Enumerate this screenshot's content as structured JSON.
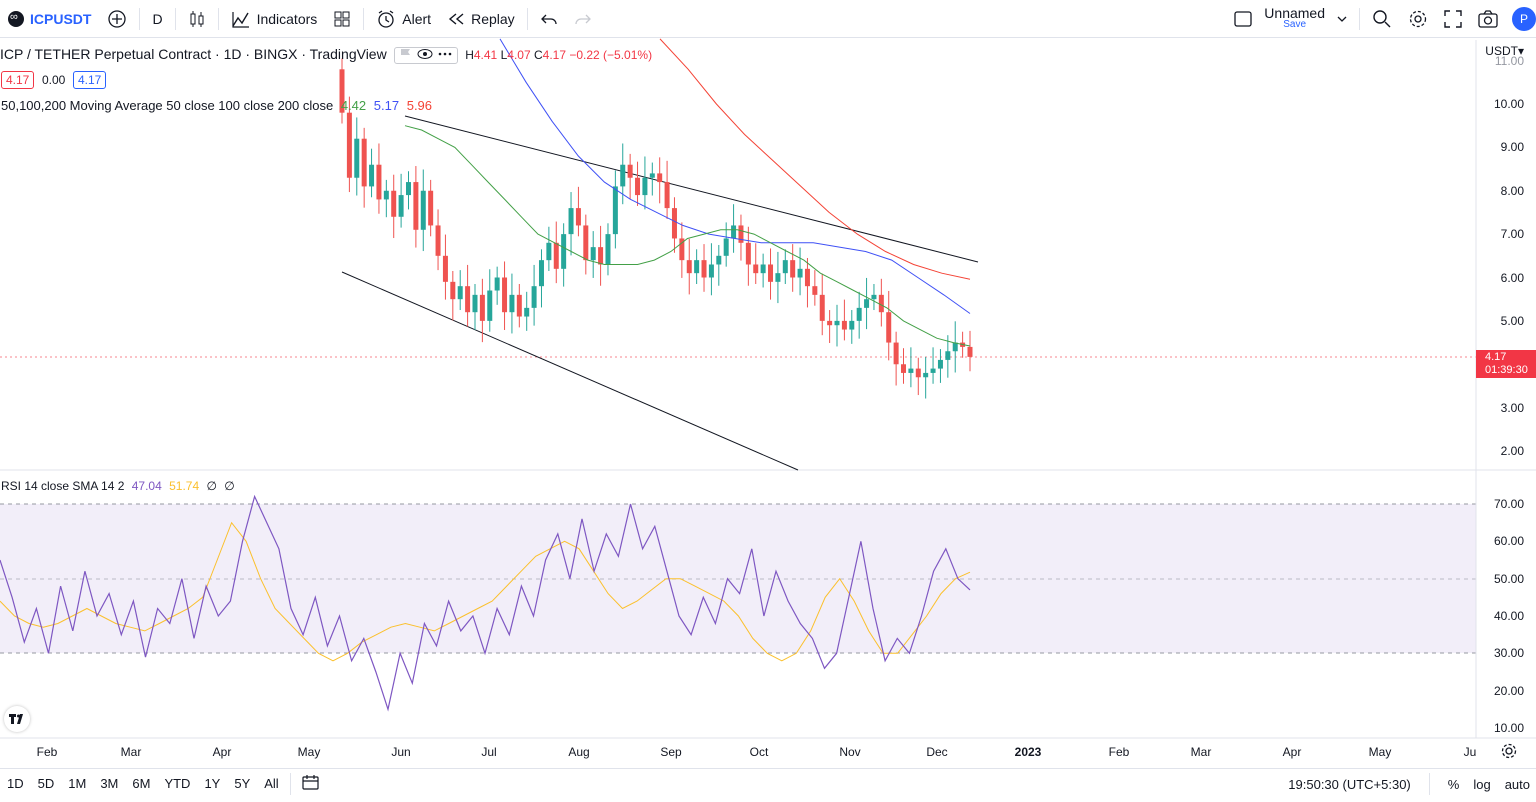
{
  "toolbar": {
    "symbol": "ICPUSDT",
    "interval": "D",
    "indicators": "Indicators",
    "alert": "Alert",
    "replay": "Replay",
    "layout_name": "Unnamed",
    "save": "Save",
    "avatar": "P"
  },
  "legend": {
    "title": "ICP / TETHER Perpetual Contract · 1D · BINGX · TradingView",
    "h_label": "H",
    "h": "4.41",
    "l_label": "L",
    "l": "4.07",
    "c_label": "C",
    "c": "4.17",
    "change": "−0.22 (−5.01%)",
    "bid": "4.17",
    "spread": "0.00",
    "ask": "4.17",
    "ma_label": "50,100,200 Moving Average 50 close 100 close 200 close",
    "ma50": "4.42",
    "ma100": "5.17",
    "ma200": "5.96",
    "rsi_label": "RSI 14 close SMA 14 2",
    "rsi": "47.04",
    "rsi_ma": "51.74",
    "na1": "∅",
    "na2": "∅"
  },
  "price_axis": {
    "currency": "USDT",
    "ticks": [
      "11.00",
      "10.00",
      "9.00",
      "8.00",
      "7.00",
      "6.00",
      "5.00",
      "4.00",
      "3.00",
      "2.00"
    ],
    "current": "4.17",
    "countdown": "01:39:30"
  },
  "rsi_axis": {
    "ticks": [
      "70.00",
      "60.00",
      "50.00",
      "40.00",
      "30.00",
      "20.00",
      "10.00"
    ]
  },
  "time_axis": [
    "Feb",
    "Mar",
    "Apr",
    "May",
    "Jun",
    "Jul",
    "Aug",
    "Sep",
    "Oct",
    "Nov",
    "Dec",
    "2023",
    "Feb",
    "Mar",
    "Apr",
    "May",
    "Ju"
  ],
  "bottom": {
    "ranges": [
      "1D",
      "5D",
      "1M",
      "3M",
      "6M",
      "YTD",
      "1Y",
      "5Y",
      "All"
    ],
    "clock": "19:50:30 (UTC+5:30)",
    "pct": "%",
    "log": "log",
    "auto": "auto"
  },
  "colors": {
    "up": "#26a69a",
    "down": "#ef5350",
    "ma50": "#43a047",
    "ma100": "#3f51f5",
    "ma200": "#f44336",
    "rsi": "#7e57c2",
    "rsi_ma": "#fbc02d",
    "accent": "#2962ff"
  },
  "chart_data": {
    "type": "candlestick",
    "price_range": [
      1.6,
      11.2
    ],
    "rsi_range": [
      8,
      75
    ],
    "rsi_levels": [
      70,
      50,
      30
    ],
    "closes": [
      9.8,
      8.3,
      9.2,
      8.1,
      8.6,
      7.8,
      8.0,
      7.4,
      7.9,
      8.2,
      7.1,
      8.0,
      7.2,
      6.5,
      5.9,
      5.5,
      5.8,
      5.2,
      5.6,
      5.0,
      5.7,
      6.0,
      5.2,
      5.6,
      5.1,
      5.3,
      5.8,
      6.4,
      6.8,
      6.2,
      7.0,
      7.6,
      7.2,
      6.4,
      6.7,
      6.3,
      7.0,
      8.1,
      8.6,
      8.3,
      7.9,
      8.3,
      8.4,
      8.2,
      7.6,
      6.9,
      6.4,
      6.1,
      6.4,
      6.0,
      6.3,
      6.5,
      6.9,
      7.2,
      6.8,
      6.3,
      6.1,
      6.3,
      5.9,
      6.1,
      6.4,
      6.0,
      6.2,
      5.8,
      5.6,
      5.0,
      4.9,
      5.0,
      4.8,
      5.0,
      5.3,
      5.5,
      5.6,
      5.2,
      4.5,
      4.0,
      3.8,
      3.9,
      3.7,
      3.8,
      3.9,
      4.1,
      4.3,
      4.5,
      4.4,
      4.17
    ],
    "ma50": [
      9.5,
      9.4,
      9.2,
      9.0,
      8.6,
      8.2,
      7.8,
      7.4,
      7.0,
      6.8,
      6.6,
      6.4,
      6.3,
      6.3,
      6.3,
      6.4,
      6.6,
      6.9,
      7.0,
      7.1,
      7.1,
      7.0,
      6.8,
      6.6,
      6.4,
      6.1,
      5.9,
      5.7,
      5.5,
      5.3,
      5.0,
      4.8,
      4.6,
      4.5,
      4.42
    ],
    "ma100": [
      11.5,
      10.5,
      9.6,
      8.8,
      8.2,
      7.8,
      7.5,
      7.2,
      7.0,
      6.9,
      6.8,
      6.8,
      6.8,
      6.7,
      6.6,
      6.4,
      6.0,
      5.6,
      5.17
    ],
    "ma200": [
      11.5,
      10.8,
      10.0,
      9.3,
      8.7,
      8.1,
      7.5,
      7.0,
      6.6,
      6.3,
      6.1,
      5.96
    ],
    "rsi": [
      55,
      45,
      33,
      42,
      30,
      48,
      36,
      52,
      40,
      46,
      35,
      44,
      29,
      42,
      38,
      50,
      34,
      48,
      40,
      44,
      60,
      72,
      65,
      58,
      42,
      35,
      45,
      32,
      40,
      28,
      34,
      25,
      15,
      30,
      22,
      38,
      32,
      44,
      36,
      40,
      30,
      42,
      35,
      48,
      40,
      55,
      62,
      50,
      66,
      52,
      62,
      56,
      70,
      58,
      64,
      52,
      40,
      35,
      45,
      38,
      50,
      46,
      58,
      40,
      52,
      44,
      38,
      34,
      26,
      30,
      45,
      60,
      42,
      28,
      34,
      30,
      40,
      52,
      58,
      50,
      47
    ],
    "rsi_ma": [
      44,
      40,
      38,
      37,
      38,
      40,
      42,
      40,
      38,
      37,
      36,
      38,
      40,
      42,
      45,
      55,
      65,
      60,
      50,
      42,
      38,
      34,
      30,
      28,
      30,
      33,
      35,
      37,
      38,
      37,
      36,
      38,
      40,
      42,
      44,
      48,
      52,
      56,
      58,
      60,
      58,
      52,
      46,
      42,
      44,
      47,
      50,
      50,
      48,
      46,
      44,
      40,
      34,
      30,
      28,
      30,
      36,
      45,
      50,
      44,
      36,
      30,
      30,
      35,
      40,
      46,
      50,
      51.74
    ]
  }
}
